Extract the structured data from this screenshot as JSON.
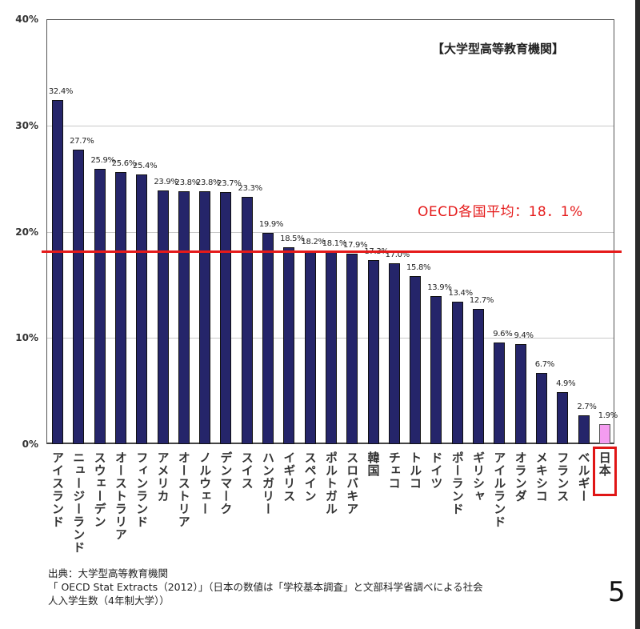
{
  "chart_data": {
    "type": "bar",
    "title": "【大学型高等教育機関】",
    "xlabel": "",
    "ylabel": "",
    "ylim": [
      0,
      40
    ],
    "yticks": [
      "0%",
      "10%",
      "20%",
      "30%",
      "40%"
    ],
    "grid": true,
    "categories": [
      "アイスランド",
      "ニュージーランド",
      "スウェーデン",
      "オーストラリア",
      "フィンランド",
      "アメリカ",
      "オーストリア",
      "ノルウェー",
      "デンマーク",
      "スイス",
      "ハンガリー",
      "イギリス",
      "スペイン",
      "ポルトガル",
      "スロバキア",
      "韓国",
      "チェコ",
      "トルコ",
      "ドイツ",
      "ポーランド",
      "ギリシャ",
      "アイルランド",
      "オランダ",
      "メキシコ",
      "フランス",
      "ベルギー",
      "日本"
    ],
    "values": [
      32.4,
      27.7,
      25.9,
      25.6,
      25.4,
      23.9,
      23.8,
      23.8,
      23.7,
      23.3,
      19.9,
      18.5,
      18.2,
      18.1,
      17.9,
      17.3,
      17.0,
      15.8,
      13.9,
      13.4,
      12.7,
      9.6,
      9.4,
      6.7,
      4.9,
      2.7,
      1.9
    ],
    "value_labels": [
      "32.4%",
      "27.7%",
      "25.9%",
      "25.6%",
      "25.4%",
      "23.9%",
      "23.8%",
      "23.8%",
      "23.7%",
      "23.3%",
      "19.9%",
      "18.5%",
      "18.2%",
      "18.1%",
      "17.9%",
      "17.3%",
      "17.0%",
      "15.8%",
      "13.9%",
      "13.4%",
      "12.7%",
      "9.6%",
      "9.4%",
      "6.7%",
      "4.9%",
      "2.7%",
      "1.9%"
    ],
    "highlight_index": 26,
    "reference_line": {
      "value": 18.1,
      "label": "OECD各国平均：18．1%"
    },
    "colors": {
      "bar": "#25256a",
      "highlight": "#f49cf0",
      "reference": "#e51a1a"
    }
  },
  "header": {
    "title": "【大学型高等教育機関】"
  },
  "average": {
    "label": "OECD各国平均：18．1%"
  },
  "footer": {
    "line1": "出典：大学型高等教育機関",
    "line2": "「 OECD Stat Extracts（2012）」（日本の数値は「学校基本調査」と文部科学省調べによる社会",
    "line3": "人入学生数（4年制大学））"
  },
  "page": {
    "number": "5"
  }
}
